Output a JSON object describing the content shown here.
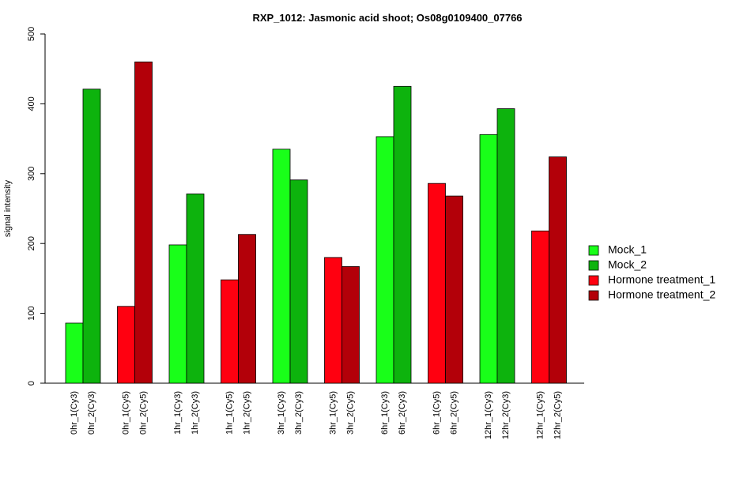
{
  "chart_data": {
    "type": "bar",
    "title": "RXP_1012: Jasmonic acid shoot; Os08g0109400_07766",
    "xlabel": "",
    "ylabel": "signal intensity",
    "ylim": [
      0,
      500
    ],
    "yticks": [
      0,
      100,
      200,
      300,
      400,
      500
    ],
    "grid": false,
    "legend_position": "right",
    "series": [
      {
        "name": "Mock_1",
        "color": "#19ff19"
      },
      {
        "name": "Mock_2",
        "color": "#0db30d"
      },
      {
        "name": "Hormone treatment_1",
        "color": "#ff0010"
      },
      {
        "name": "Hormone treatment_2",
        "color": "#b30009"
      }
    ],
    "groups": [
      {
        "bars": [
          {
            "label": "0hr_1(Cy3)",
            "value": 86,
            "series": 0
          },
          {
            "label": "0hr_2(Cy3)",
            "value": 421,
            "series": 1
          }
        ]
      },
      {
        "bars": [
          {
            "label": "0hr_1(Cy5)",
            "value": 110,
            "series": 2
          },
          {
            "label": "0hr_2(Cy5)",
            "value": 460,
            "series": 3
          }
        ]
      },
      {
        "bars": [
          {
            "label": "1hr_1(Cy3)",
            "value": 198,
            "series": 0
          },
          {
            "label": "1hr_2(Cy3)",
            "value": 271,
            "series": 1
          }
        ]
      },
      {
        "bars": [
          {
            "label": "1hr_1(Cy5)",
            "value": 148,
            "series": 2
          },
          {
            "label": "1hr_2(Cy5)",
            "value": 213,
            "series": 3
          }
        ]
      },
      {
        "bars": [
          {
            "label": "3hr_1(Cy3)",
            "value": 335,
            "series": 0
          },
          {
            "label": "3hr_2(Cy3)",
            "value": 291,
            "series": 1
          }
        ]
      },
      {
        "bars": [
          {
            "label": "3hr_1(Cy5)",
            "value": 180,
            "series": 2
          },
          {
            "label": "3hr_2(Cy5)",
            "value": 167,
            "series": 3
          }
        ]
      },
      {
        "bars": [
          {
            "label": "6hr_1(Cy3)",
            "value": 353,
            "series": 0
          },
          {
            "label": "6hr_2(Cy3)",
            "value": 425,
            "series": 1
          }
        ]
      },
      {
        "bars": [
          {
            "label": "6hr_1(Cy5)",
            "value": 286,
            "series": 2
          },
          {
            "label": "6hr_2(Cy5)",
            "value": 268,
            "series": 3
          }
        ]
      },
      {
        "bars": [
          {
            "label": "12hr_1(Cy3)",
            "value": 356,
            "series": 0
          },
          {
            "label": "12hr_2(Cy3)",
            "value": 393,
            "series": 1
          }
        ]
      },
      {
        "bars": [
          {
            "label": "12hr_1(Cy5)",
            "value": 218,
            "series": 2
          },
          {
            "label": "12hr_2(Cy5)",
            "value": 324,
            "series": 3
          }
        ]
      }
    ]
  }
}
